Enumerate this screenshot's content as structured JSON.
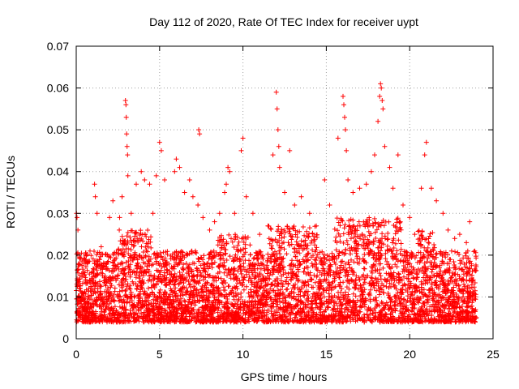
{
  "chart_data": {
    "type": "scatter",
    "title": "Day 112 of 2020, Rate Of TEC Index for receiver uypt",
    "xlabel": "GPS time / hours",
    "ylabel": "ROTI / TECUs",
    "xlim": [
      0,
      25
    ],
    "ylim": [
      0,
      0.07
    ],
    "xticks": [
      0,
      5,
      10,
      15,
      20,
      25
    ],
    "xtick_labels": [
      "0",
      "5",
      "10",
      "15",
      "20",
      "25"
    ],
    "yticks": [
      0,
      0.01,
      0.02,
      0.03,
      0.04,
      0.05,
      0.06,
      0.07
    ],
    "ytick_labels": [
      "0",
      "0.01",
      "0.02",
      "0.03",
      "0.04",
      "0.05",
      "0.06",
      "0.07"
    ],
    "grid": true,
    "marker": "+",
    "color": "#ff0000",
    "data_extent": {
      "x": [
        0,
        24
      ]
    },
    "series": [
      {
        "values": [
          [
            0.02,
            0.03
          ],
          [
            0.05,
            0.029
          ],
          [
            0.1,
            0.026
          ],
          [
            0.15,
            0.018
          ],
          [
            0.2,
            0.012
          ],
          [
            0.3,
            0.009
          ],
          [
            0.5,
            0.019
          ],
          [
            0.8,
            0.014
          ],
          [
            1.1,
            0.037
          ],
          [
            1.15,
            0.034
          ],
          [
            1.25,
            0.03
          ],
          [
            1.5,
            0.022
          ],
          [
            2.0,
            0.029
          ],
          [
            2.2,
            0.033
          ],
          [
            2.6,
            0.029
          ],
          [
            2.75,
            0.034
          ],
          [
            2.95,
            0.057
          ],
          [
            2.98,
            0.056
          ],
          [
            3.0,
            0.053
          ],
          [
            3.02,
            0.049
          ],
          [
            3.05,
            0.046
          ],
          [
            3.08,
            0.044
          ],
          [
            3.1,
            0.039
          ],
          [
            3.3,
            0.03
          ],
          [
            3.6,
            0.037
          ],
          [
            3.9,
            0.04
          ],
          [
            4.1,
            0.038
          ],
          [
            4.4,
            0.037
          ],
          [
            4.6,
            0.03
          ],
          [
            4.8,
            0.039
          ],
          [
            5.0,
            0.047
          ],
          [
            5.1,
            0.045
          ],
          [
            5.3,
            0.038
          ],
          [
            5.9,
            0.04
          ],
          [
            6.0,
            0.043
          ],
          [
            6.2,
            0.041
          ],
          [
            6.5,
            0.035
          ],
          [
            6.8,
            0.038
          ],
          [
            7.0,
            0.034
          ],
          [
            7.3,
            0.032
          ],
          [
            7.35,
            0.05
          ],
          [
            7.4,
            0.049
          ],
          [
            7.6,
            0.029
          ],
          [
            8.0,
            0.026
          ],
          [
            8.3,
            0.028
          ],
          [
            8.6,
            0.03
          ],
          [
            8.9,
            0.035
          ],
          [
            9.0,
            0.037
          ],
          [
            9.1,
            0.041
          ],
          [
            9.2,
            0.04
          ],
          [
            9.5,
            0.03
          ],
          [
            9.9,
            0.045
          ],
          [
            10.0,
            0.048
          ],
          [
            10.2,
            0.034
          ],
          [
            10.6,
            0.03
          ],
          [
            11.0,
            0.025
          ],
          [
            11.5,
            0.027
          ],
          [
            11.8,
            0.044
          ],
          [
            12.0,
            0.059
          ],
          [
            12.05,
            0.055
          ],
          [
            12.1,
            0.05
          ],
          [
            12.15,
            0.046
          ],
          [
            12.2,
            0.041
          ],
          [
            12.5,
            0.035
          ],
          [
            12.8,
            0.045
          ],
          [
            13.1,
            0.032
          ],
          [
            13.5,
            0.034
          ],
          [
            14.0,
            0.03
          ],
          [
            14.4,
            0.027
          ],
          [
            14.9,
            0.038
          ],
          [
            15.2,
            0.032
          ],
          [
            15.7,
            0.048
          ],
          [
            16.0,
            0.058
          ],
          [
            16.05,
            0.056
          ],
          [
            16.1,
            0.053
          ],
          [
            16.15,
            0.05
          ],
          [
            16.2,
            0.045
          ],
          [
            16.3,
            0.038
          ],
          [
            16.6,
            0.035
          ],
          [
            17.0,
            0.036
          ],
          [
            17.4,
            0.037
          ],
          [
            17.7,
            0.04
          ],
          [
            17.9,
            0.044
          ],
          [
            18.1,
            0.052
          ],
          [
            18.2,
            0.058
          ],
          [
            18.25,
            0.061
          ],
          [
            18.3,
            0.06
          ],
          [
            18.35,
            0.057
          ],
          [
            18.4,
            0.055
          ],
          [
            18.5,
            0.046
          ],
          [
            18.8,
            0.041
          ],
          [
            19.0,
            0.036
          ],
          [
            19.3,
            0.044
          ],
          [
            19.6,
            0.032
          ],
          [
            20.0,
            0.029
          ],
          [
            20.3,
            0.025
          ],
          [
            20.7,
            0.036
          ],
          [
            20.9,
            0.044
          ],
          [
            21.0,
            0.047
          ],
          [
            21.3,
            0.036
          ],
          [
            21.6,
            0.033
          ],
          [
            22.0,
            0.03
          ],
          [
            22.3,
            0.026
          ],
          [
            22.7,
            0.024
          ],
          [
            23.0,
            0.025
          ],
          [
            23.4,
            0.023
          ],
          [
            23.6,
            0.028
          ],
          [
            23.9,
            0.021
          ]
        ]
      }
    ]
  }
}
